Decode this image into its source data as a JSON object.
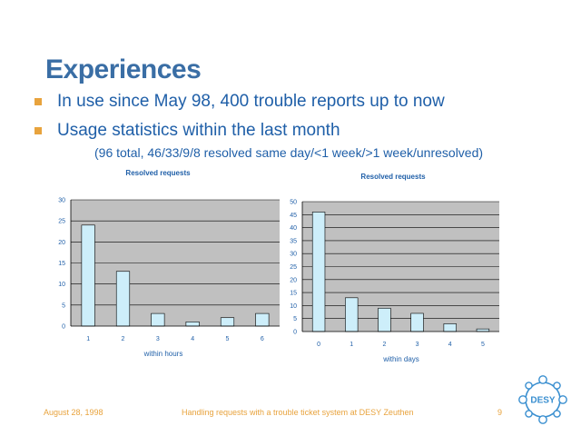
{
  "slide": {
    "title": "Experiences",
    "bullets": [
      "In use since May 98, 400 trouble reports up to now",
      "Usage statistics within the last month"
    ],
    "sub_bullet": "(96 total, 46/33/9/8 resolved same day/<1 week/>1 week/unresolved)"
  },
  "chart_data": [
    {
      "type": "bar",
      "title": "Resolved requests",
      "xlabel": "within hours",
      "ylabel": "",
      "categories": [
        "1",
        "2",
        "3",
        "4",
        "5",
        "6"
      ],
      "values": [
        24,
        13,
        3,
        1,
        2,
        3
      ],
      "ylim": [
        0,
        30
      ],
      "yticks": [
        0,
        5,
        10,
        15,
        20,
        25,
        30
      ],
      "grid": true,
      "legend": "none",
      "colors": {
        "bar": "#cdeefa",
        "plot_bg": "#c0c0c0",
        "grid": "#000000"
      }
    },
    {
      "type": "bar",
      "title": "Resolved requests",
      "xlabel": "within days",
      "ylabel": "",
      "categories": [
        "0",
        "1",
        "2",
        "3",
        "4",
        "5"
      ],
      "values": [
        46,
        13,
        9,
        7,
        3,
        1
      ],
      "ylim": [
        0,
        50
      ],
      "yticks": [
        0,
        5,
        10,
        15,
        20,
        25,
        30,
        35,
        40,
        45,
        50
      ],
      "grid": true,
      "legend": "none",
      "colors": {
        "bar": "#cdeefa",
        "plot_bg": "#c0c0c0",
        "grid": "#000000"
      }
    }
  ],
  "footer": {
    "date": "August 28, 1998",
    "center": "Handling requests with a trouble ticket system at DESY Zeuthen",
    "page": "9"
  },
  "logo": {
    "text": "DESY",
    "color": "#3a8fd0"
  }
}
